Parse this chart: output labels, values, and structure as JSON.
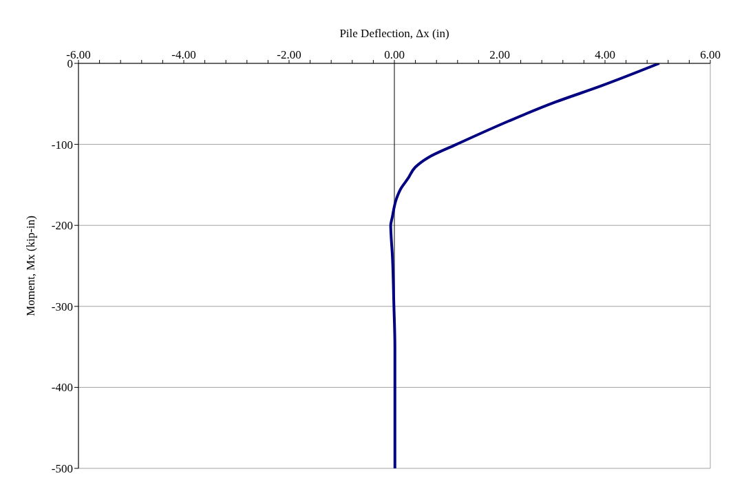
{
  "chart_data": {
    "type": "line",
    "xlabel": "Pile Deflection, Δx (in)",
    "ylabel": "Moment, Mx (kip-in)",
    "xlim": [
      -6,
      6
    ],
    "xticks": [
      {
        "value": -6,
        "label": "-6.00"
      },
      {
        "value": -5.6,
        "label": null
      },
      {
        "value": -5.2,
        "label": null
      },
      {
        "value": -4.8,
        "label": null
      },
      {
        "value": -4.4,
        "label": null
      },
      {
        "value": -4,
        "label": "-4.00"
      },
      {
        "value": -3.6,
        "label": null
      },
      {
        "value": -3.2,
        "label": null
      },
      {
        "value": -2.8,
        "label": null
      },
      {
        "value": -2.4,
        "label": null
      },
      {
        "value": -2,
        "label": "-2.00"
      },
      {
        "value": -1.6,
        "label": null
      },
      {
        "value": -1.2,
        "label": null
      },
      {
        "value": -0.8,
        "label": null
      },
      {
        "value": -0.4,
        "label": null
      },
      {
        "value": 0,
        "label": "0.00"
      },
      {
        "value": 0.4,
        "label": null
      },
      {
        "value": 0.8,
        "label": null
      },
      {
        "value": 1.2,
        "label": null
      },
      {
        "value": 1.6,
        "label": null
      },
      {
        "value": 2,
        "label": "2.00"
      },
      {
        "value": 2.4,
        "label": null
      },
      {
        "value": 2.8,
        "label": null
      },
      {
        "value": 3.2,
        "label": null
      },
      {
        "value": 3.6,
        "label": null
      },
      {
        "value": 4,
        "label": "4.00"
      },
      {
        "value": 4.4,
        "label": null
      },
      {
        "value": 4.8,
        "label": null
      },
      {
        "value": 5.2,
        "label": null
      },
      {
        "value": 5.6,
        "label": null
      },
      {
        "value": 6,
        "label": "6.00"
      }
    ],
    "ylim": [
      -500,
      0
    ],
    "yticks": [
      -500,
      -400,
      -300,
      -200,
      -100,
      0
    ],
    "grid": "y",
    "marker": "none",
    "line_style": "solid",
    "ref_lines": [
      {
        "axis": "x",
        "value": 0,
        "color": "#000000"
      }
    ],
    "series": [
      {
        "color": "#000080",
        "x": [
          5.03,
          3.92,
          3.05,
          2.18,
          1.18,
          0.65,
          0.4,
          0.26,
          0.12,
          0.04,
          -0.04,
          -0.07,
          -0.06,
          -0.04,
          -0.01,
          0.01,
          0.01,
          0.01
        ],
        "values": [
          0,
          -28,
          -48,
          -71,
          -100,
          -116,
          -128,
          -142,
          -155,
          -167,
          -190,
          -200,
          -215,
          -235,
          -297,
          -350,
          -420,
          -500
        ]
      }
    ]
  }
}
